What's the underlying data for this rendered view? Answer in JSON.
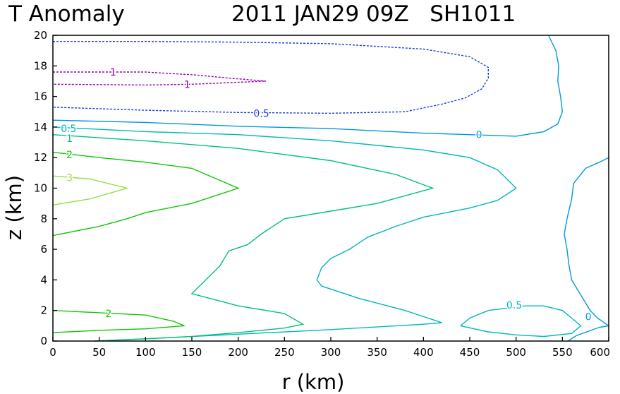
{
  "chart_data": {
    "type": "contour",
    "title_left": "T Anomaly",
    "title_right": "2011 JAN29 09Z   SH1011",
    "xlabel": "r (km)",
    "ylabel": "z (km)",
    "xlim": [
      0,
      600
    ],
    "ylim": [
      0,
      20
    ],
    "xticks": [
      0,
      50,
      100,
      150,
      200,
      250,
      300,
      350,
      400,
      450,
      500,
      550,
      600
    ],
    "yticks": [
      0,
      2,
      4,
      6,
      8,
      10,
      12,
      14,
      16,
      18,
      20
    ],
    "contours": [
      {
        "level": 1,
        "color": "#9400b0",
        "dashed": true,
        "points": [
          [
            0,
            17.6
          ],
          [
            100,
            17.6
          ],
          [
            155,
            17.4
          ],
          [
            190,
            17.2
          ],
          [
            230,
            17.0
          ],
          [
            190,
            16.9
          ],
          [
            150,
            16.8
          ],
          [
            100,
            16.75
          ],
          [
            0,
            16.8
          ]
        ]
      },
      {
        "level": 0.5,
        "color": "#1a3ee0",
        "dashed": true,
        "points": [
          [
            0,
            19.6
          ],
          [
            100,
            19.6
          ],
          [
            200,
            19.55
          ],
          [
            300,
            19.45
          ],
          [
            400,
            19.1
          ],
          [
            450,
            18.6
          ],
          [
            470,
            17.9
          ],
          [
            470,
            17.2
          ],
          [
            463,
            16.5
          ],
          [
            445,
            15.9
          ],
          [
            420,
            15.5
          ],
          [
            380,
            15.0
          ],
          [
            300,
            14.9
          ],
          [
            200,
            14.95
          ],
          [
            100,
            15.1
          ],
          [
            0,
            15.3
          ]
        ]
      },
      {
        "level": 0,
        "color": "#0098e0",
        "dashed": false,
        "points": [
          [
            0,
            14.45
          ],
          [
            100,
            14.3
          ],
          [
            200,
            14.05
          ],
          [
            300,
            13.9
          ],
          [
            400,
            13.6
          ],
          [
            450,
            13.5
          ],
          [
            500,
            13.4
          ],
          [
            530,
            13.7
          ],
          [
            545,
            14.2
          ],
          [
            550,
            15.0
          ],
          [
            548,
            16.0
          ],
          [
            545,
            17.0
          ],
          [
            546,
            18.0
          ],
          [
            543,
            19.0
          ],
          [
            535,
            20.0
          ]
        ]
      },
      {
        "level": 0,
        "color": "#0098e0",
        "dashed": false,
        "points": [
          [
            600,
            12.0
          ],
          [
            590,
            11.7
          ],
          [
            575,
            11.3
          ],
          [
            562,
            10.3
          ],
          [
            560,
            9.3
          ],
          [
            555,
            8.0
          ],
          [
            552,
            7.0
          ],
          [
            555,
            6.0
          ],
          [
            557,
            5.0
          ],
          [
            560,
            4.0
          ],
          [
            570,
            3.0
          ],
          [
            580,
            2.0
          ],
          [
            588,
            1.5
          ],
          [
            600,
            1.0
          ]
        ]
      },
      {
        "level": 0,
        "color": "#0098e0",
        "dashed": false,
        "points": [
          [
            556,
            0
          ],
          [
            565,
            0.35
          ],
          [
            590,
            0.9
          ],
          [
            600,
            1.0
          ]
        ]
      },
      {
        "level": 0.5,
        "color": "#00b8b8",
        "dashed": false,
        "points": [
          [
            0,
            14.0
          ],
          [
            100,
            13.7
          ],
          [
            200,
            13.5
          ],
          [
            300,
            13.1
          ],
          [
            400,
            12.5
          ],
          [
            450,
            12.0
          ],
          [
            480,
            11.2
          ],
          [
            500,
            10.0
          ],
          [
            480,
            9.2
          ],
          [
            450,
            8.7
          ],
          [
            400,
            8.1
          ],
          [
            370,
            7.5
          ],
          [
            340,
            6.8
          ],
          [
            320,
            6.0
          ],
          [
            300,
            5.4
          ],
          [
            290,
            4.8
          ],
          [
            285,
            4.0
          ],
          [
            290,
            3.6
          ],
          [
            330,
            2.8
          ],
          [
            380,
            2.0
          ],
          [
            420,
            1.2
          ],
          [
            400,
            1.1
          ],
          [
            300,
            0.75
          ],
          [
            200,
            0.45
          ],
          [
            100,
            0.15
          ],
          [
            45,
            0
          ]
        ]
      },
      {
        "level": 0.5,
        "color": "#00b8b8",
        "dashed": false,
        "points": [
          [
            440,
            1.0
          ],
          [
            450,
            1.5
          ],
          [
            470,
            2.0
          ],
          [
            510,
            2.3
          ],
          [
            530,
            2.3
          ],
          [
            550,
            2.0
          ],
          [
            560,
            1.5
          ],
          [
            570,
            1.0
          ],
          [
            560,
            0.5
          ],
          [
            530,
            0.3
          ],
          [
            500,
            0.4
          ],
          [
            470,
            0.6
          ],
          [
            440,
            1.0
          ]
        ]
      },
      {
        "level": 1,
        "color": "#00c080",
        "dashed": false,
        "points": [
          [
            0,
            13.5
          ],
          [
            100,
            13.1
          ],
          [
            200,
            12.6
          ],
          [
            300,
            11.8
          ],
          [
            370,
            10.9
          ],
          [
            410,
            10.0
          ],
          [
            350,
            9.0
          ],
          [
            300,
            8.5
          ],
          [
            250,
            8.0
          ],
          [
            225,
            7.0
          ],
          [
            210,
            6.3
          ],
          [
            190,
            5.9
          ],
          [
            180,
            4.9
          ],
          [
            170,
            4.3
          ],
          [
            150,
            3.1
          ],
          [
            200,
            2.3
          ],
          [
            250,
            1.8
          ],
          [
            270,
            1.1
          ],
          [
            250,
            0.85
          ],
          [
            200,
            0.55
          ],
          [
            150,
            0.3
          ],
          [
            100,
            0.15
          ],
          [
            45,
            0
          ]
        ]
      },
      {
        "level": 2,
        "color": "#10c800",
        "dashed": false,
        "points": [
          [
            0,
            12.35
          ],
          [
            50,
            12.0
          ],
          [
            100,
            11.7
          ],
          [
            150,
            11.3
          ],
          [
            200,
            10.0
          ],
          [
            150,
            9.0
          ],
          [
            100,
            8.4
          ],
          [
            80,
            8.0
          ],
          [
            50,
            7.5
          ],
          [
            0,
            6.9
          ]
        ]
      },
      {
        "level": 2,
        "color": "#10c800",
        "dashed": false,
        "points": [
          [
            0,
            2.0
          ],
          [
            50,
            1.85
          ],
          [
            100,
            1.7
          ],
          [
            130,
            1.3
          ],
          [
            142,
            1.0
          ],
          [
            100,
            0.8
          ],
          [
            50,
            0.7
          ],
          [
            0,
            0.55
          ]
        ]
      },
      {
        "level": 3,
        "color": "#90e040",
        "dashed": false,
        "points": [
          [
            0,
            10.8
          ],
          [
            40,
            10.6
          ],
          [
            80,
            10.0
          ],
          [
            40,
            9.3
          ],
          [
            0,
            8.9
          ]
        ]
      }
    ],
    "labels": [
      {
        "text": "1",
        "x": 65,
        "y": 17.6,
        "color": "#9400b0"
      },
      {
        "text": "1",
        "x": 145,
        "y": 16.8,
        "color": "#9400b0"
      },
      {
        "text": "0.5",
        "x": 225,
        "y": 14.9,
        "color": "#1a3ee0"
      },
      {
        "text": "0",
        "x": 460,
        "y": 13.5,
        "color": "#0098e0"
      },
      {
        "text": "0",
        "x": 578,
        "y": 1.6,
        "color": "#0098e0"
      },
      {
        "text": "0.5",
        "x": 17,
        "y": 13.9,
        "color": "#00b8b8"
      },
      {
        "text": "0.5",
        "x": 498,
        "y": 2.35,
        "color": "#00b8b8"
      },
      {
        "text": "1",
        "x": 18,
        "y": 13.25,
        "color": "#00c080"
      },
      {
        "text": "2",
        "x": 18,
        "y": 12.2,
        "color": "#10c800"
      },
      {
        "text": "2",
        "x": 60,
        "y": 1.8,
        "color": "#10c800"
      },
      {
        "text": "3",
        "x": 18,
        "y": 10.7,
        "color": "#90e040"
      }
    ]
  }
}
